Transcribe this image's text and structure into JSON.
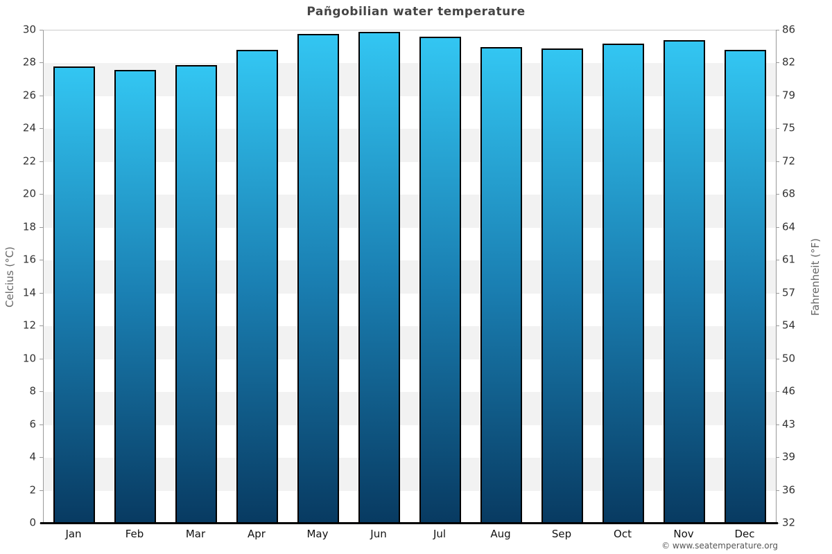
{
  "title": "Pañgobilian water temperature",
  "footer": "© www.seatemperature.org",
  "chart_data": {
    "type": "bar",
    "title": "Pañgobilian water temperature",
    "categories": [
      "Jan",
      "Feb",
      "Mar",
      "Apr",
      "May",
      "Jun",
      "Jul",
      "Aug",
      "Sep",
      "Oct",
      "Nov",
      "Dec"
    ],
    "values": [
      27.8,
      27.6,
      27.9,
      28.8,
      29.8,
      29.9,
      29.6,
      29.0,
      28.9,
      29.2,
      29.4,
      28.8
    ],
    "series_name": "Water temperature (°C)",
    "xlabel": "",
    "ylabel_left": "Celcius (°C)",
    "ylabel_right": "Fahrenheit (°F)",
    "ylim": [
      0,
      30
    ],
    "y_ticks_celsius": [
      "30",
      "28",
      "26",
      "24",
      "22",
      "20",
      "18",
      "16",
      "14",
      "12",
      "10",
      "8",
      "6",
      "4",
      "2",
      "0"
    ],
    "y_ticks_fahrenheit": [
      "86",
      "82",
      "79",
      "75",
      "72",
      "68",
      "64",
      "61",
      "57",
      "54",
      "50",
      "46",
      "43",
      "39",
      "36",
      "32"
    ],
    "grid": "alternating horizontal bands every 2°C",
    "legend": "none"
  },
  "colors": {
    "bar_gradient_top": "#33c6f2",
    "bar_gradient_mid": "#1a7fb2",
    "bar_gradient_bottom": "#083a61",
    "bar_border": "#000000",
    "band_gray": "#f2f2f2",
    "band_white": "#ffffff",
    "side_axis_line": "#999999",
    "bottom_axis_line": "#000000",
    "title_color": "#454545",
    "tick_label_color": "#333333",
    "axis_title_color": "#666666",
    "footer_color": "#555555"
  }
}
